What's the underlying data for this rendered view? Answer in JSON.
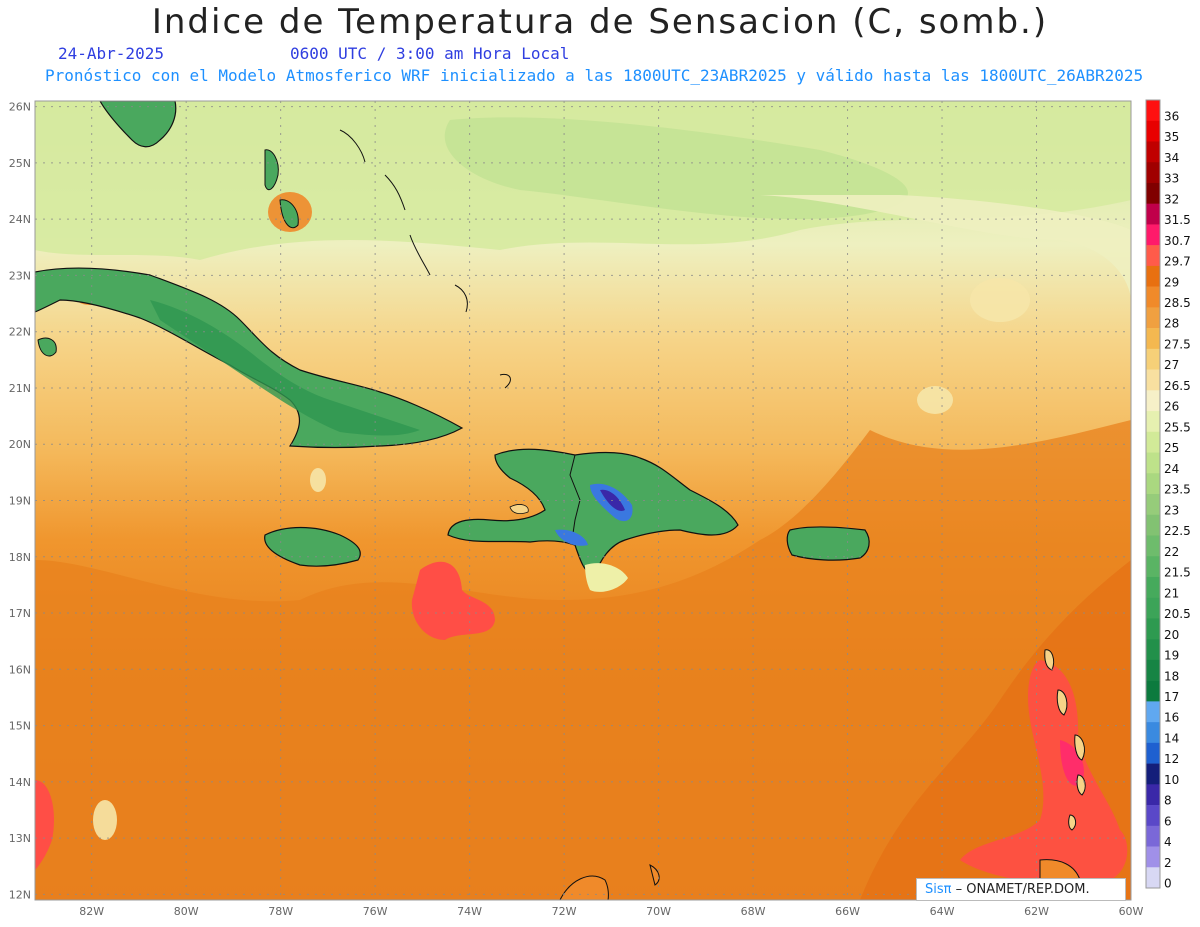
{
  "header": {
    "title": "Indice de Temperatura de Sensacion (C, somb.)",
    "date": "24-Abr-2025",
    "time": "0600 UTC / 3:00 am Hora Local",
    "model_info": "Pronóstico con el Modelo Atmosferico WRF inicializado a las 1800UTC_23ABR2025 y válido hasta las  1800UTC_26ABR2025"
  },
  "axes": {
    "lon_range": [
      -83.2,
      -60
    ],
    "lat_range": [
      11.9,
      26.1
    ],
    "lon_ticks": [
      "82W",
      "80W",
      "78W",
      "76W",
      "74W",
      "72W",
      "70W",
      "68W",
      "66W",
      "64W",
      "62W",
      "60W"
    ],
    "lon_values": [
      -82,
      -80,
      -78,
      -76,
      -74,
      -72,
      -70,
      -68,
      -66,
      -64,
      -62,
      -60
    ],
    "lat_ticks": [
      "12N",
      "13N",
      "14N",
      "15N",
      "16N",
      "17N",
      "18N",
      "19N",
      "20N",
      "21N",
      "22N",
      "23N",
      "24N",
      "25N",
      "26N"
    ],
    "lat_values": [
      12,
      13,
      14,
      15,
      16,
      17,
      18,
      19,
      20,
      21,
      22,
      23,
      24,
      25,
      26
    ]
  },
  "legend": {
    "labels": [
      "36",
      "35",
      "34",
      "33",
      "32",
      "31.5",
      "30.7",
      "29.7",
      "29",
      "28.5",
      "28",
      "27.5",
      "27",
      "26.5",
      "26",
      "25.5",
      "25",
      "24",
      "23.5",
      "23",
      "22.5",
      "22",
      "21.5",
      "21",
      "20.5",
      "20",
      "19",
      "18",
      "17",
      "16",
      "14",
      "12",
      "10",
      "8",
      "6",
      "4",
      "2",
      "0"
    ],
    "colors": [
      "#ff1010",
      "#e80000",
      "#c00000",
      "#a00000",
      "#800000",
      "#c0004a",
      "#ff1a6a",
      "#ff5b4a",
      "#e87010",
      "#f08a2a",
      "#f0a040",
      "#f4b850",
      "#f6d078",
      "#f8e0a0",
      "#f6f0c8",
      "#e6f0b0",
      "#d2ea98",
      "#bee28a",
      "#aad880",
      "#96cc7a",
      "#82c272",
      "#6ebc6c",
      "#5ab464",
      "#46aa5c",
      "#3ca458",
      "#2e9a50",
      "#22904a",
      "#168444",
      "#0c7a3e",
      "#60a8f0",
      "#3a8ae0",
      "#1e60d0",
      "#141e7a",
      "#3a28a8",
      "#5a48c8",
      "#7a68d8",
      "#a090e8",
      "#d8d8f4"
    ]
  },
  "map_colors": {
    "ocean_warm": "#e87a1e",
    "ocean_mid": "#f0962e",
    "ocean_north": "#f6d488",
    "cool_sea": "#d6eaa0",
    "cool_sea_2": "#c2e294",
    "land_green": "#4aa85e",
    "land_dark": "#2e9650",
    "hot_spot": "#ff4e46",
    "magenta": "#ff2d6a",
    "mountain_blue": "#3a78e0",
    "mountain_violet": "#3a28a8"
  },
  "credit": {
    "sis": "Sisπ",
    "rest": " – ONAMET/REP.DOM."
  }
}
